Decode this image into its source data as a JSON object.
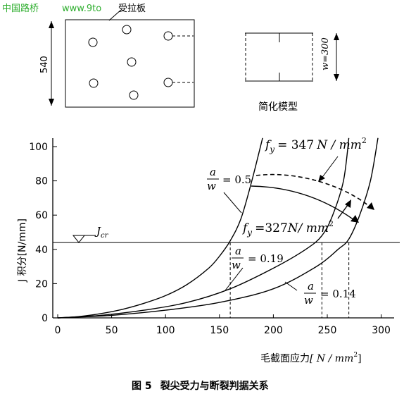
{
  "watermark": {
    "site_name": "中国路桥",
    "site_url": "www.9to"
  },
  "top_figure": {
    "plate_label": "受拉板",
    "plate_height_label": "540",
    "model_width_label": "w=300",
    "model_caption": "简化模型"
  },
  "chart_data": {
    "type": "line",
    "xlabel_prefix": "毛截面应力",
    "xlabel_unit": "[ N / mm",
    "xlabel_unit_exp": "2",
    "xlabel_unit_close": "]",
    "ylabel": "J 积分[N/mm]",
    "xlim": [
      0,
      320
    ],
    "ylim": [
      0,
      105
    ],
    "xticks": [
      0,
      50,
      100,
      150,
      200,
      250,
      300
    ],
    "yticks": [
      0,
      20,
      40,
      60,
      80,
      100
    ],
    "jcr_value": 44,
    "jcr_label": "J",
    "jcr_sub": "cr",
    "series": [
      {
        "x": [
          0,
          20,
          40,
          60,
          80,
          100,
          120,
          140,
          150,
          160,
          170,
          180,
          190
        ],
        "y": [
          0,
          0.8,
          2.5,
          5,
          8.5,
          13,
          19.5,
          29,
          36,
          45,
          58,
          80,
          105
        ]
      },
      {
        "x": [
          0,
          40,
          80,
          120,
          160,
          200,
          230,
          245,
          255,
          265,
          270
        ],
        "y": [
          0,
          1.5,
          4.5,
          9,
          17,
          29,
          40,
          48,
          60,
          80,
          105
        ]
      },
      {
        "x": [
          0,
          50,
          100,
          150,
          200,
          240,
          260,
          270,
          280,
          290,
          297
        ],
        "y": [
          0,
          1.5,
          4.5,
          9,
          17,
          30,
          40,
          46,
          60,
          80,
          105
        ]
      }
    ],
    "annotations": {
      "fy_high": {
        "label": "f",
        "sub": "y",
        "eq": "= 347",
        "unit": "N / mm",
        "exp": "2"
      },
      "fy_low": {
        "label": "f",
        "sub": "y",
        "eq": "=327",
        "unit": "N/ mm",
        "exp": "2"
      },
      "ratio_1": {
        "num": "a",
        "den": "w",
        "eq": "= 0.5"
      },
      "ratio_2": {
        "num": "a",
        "den": "w",
        "eq": "= 0.19"
      },
      "ratio_3": {
        "num": "a",
        "den": "w",
        "eq": "= 0.14"
      }
    },
    "critical_stress_markers": [
      160,
      245,
      270
    ]
  },
  "caption": {
    "figure_number": "图 5",
    "figure_title": "裂尖受力与断裂判据关系"
  }
}
